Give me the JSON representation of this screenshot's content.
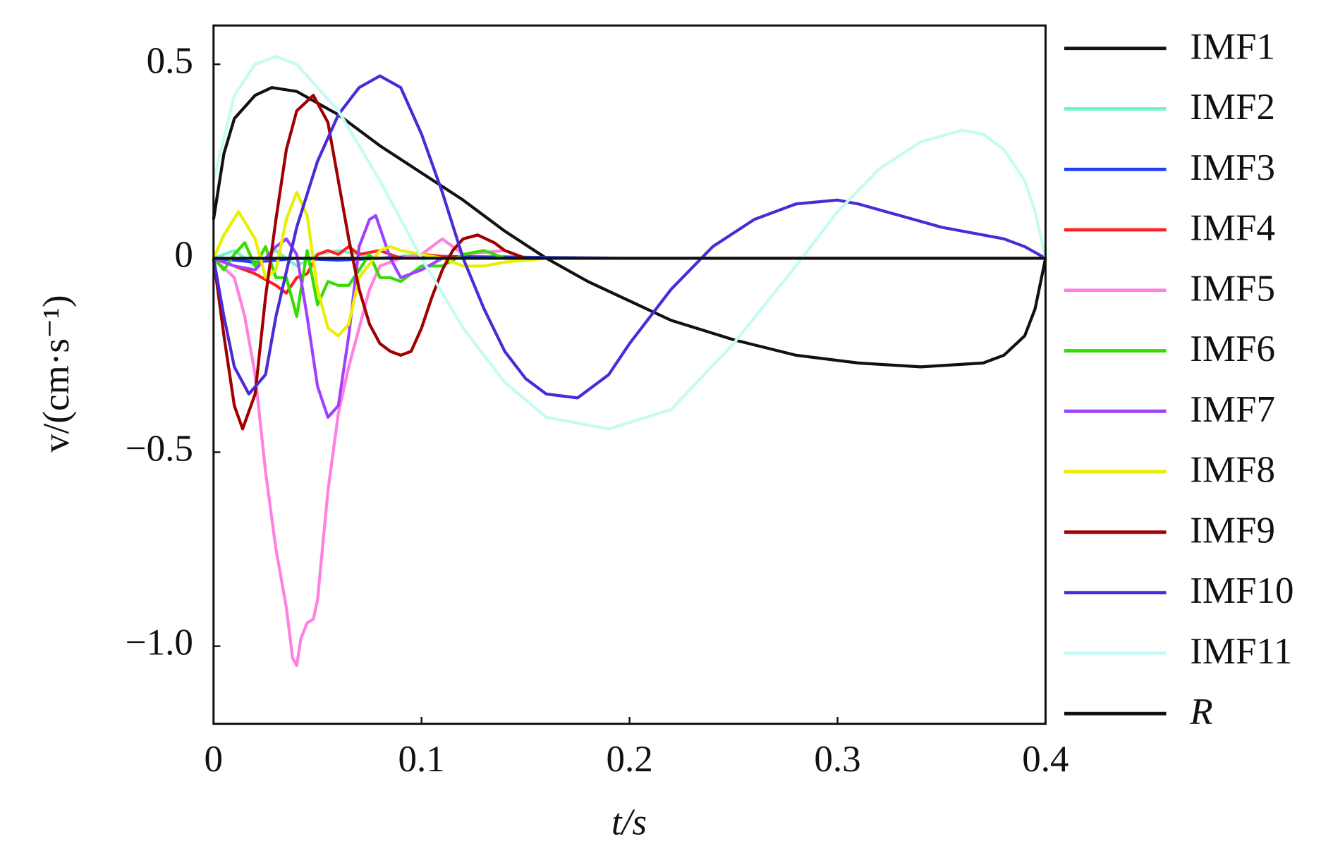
{
  "chart_data": {
    "type": "line",
    "x_label": "t/s",
    "y_label": "v/(cm·s⁻¹)",
    "xlim": [
      0,
      0.4
    ],
    "ylim": [
      -1.2,
      0.6
    ],
    "xticks": [
      0,
      0.1,
      0.2,
      0.3,
      0.4
    ],
    "yticks": [
      {
        "value": -1.0,
        "label": "−1.0"
      },
      {
        "value": -0.5,
        "label": "−0.5"
      },
      0,
      0.5
    ],
    "legend": "outside-right",
    "series": [
      {
        "name": "IMF1",
        "color": "#111111",
        "x": [
          0,
          0.005,
          0.01,
          0.02,
          0.028,
          0.04,
          0.06,
          0.08,
          0.1,
          0.12,
          0.14,
          0.16,
          0.18,
          0.2,
          0.22,
          0.25,
          0.28,
          0.31,
          0.34,
          0.37,
          0.38,
          0.39,
          0.395,
          0.4
        ],
        "values": [
          0.1,
          0.27,
          0.36,
          0.42,
          0.44,
          0.43,
          0.37,
          0.29,
          0.22,
          0.15,
          0.07,
          0,
          -0.06,
          -0.11,
          -0.16,
          -0.21,
          -0.25,
          -0.27,
          -0.28,
          -0.27,
          -0.25,
          -0.2,
          -0.13,
          0
        ]
      },
      {
        "name": "IMF2",
        "color": "#6ff5d0",
        "x": [
          0,
          0.01,
          0.02,
          0.03,
          0.04,
          0.05,
          0.06,
          0.08,
          0.1,
          0.12,
          0.14,
          0.16,
          0.2,
          0.4
        ],
        "values": [
          0,
          0.02,
          -0.02,
          0.02,
          -0.02,
          0.01,
          0.02,
          0,
          0.01,
          0,
          0.005,
          0,
          0,
          0
        ]
      },
      {
        "name": "IMF3",
        "color": "#1f3fff",
        "x": [
          0,
          0.02,
          0.04,
          0.06,
          0.1,
          0.2,
          0.4
        ],
        "values": [
          0,
          -0.01,
          0,
          -0.005,
          0.005,
          0,
          0
        ]
      },
      {
        "name": "IMF4",
        "color": "#ff2020",
        "x": [
          0,
          0.01,
          0.02,
          0.03,
          0.035,
          0.04,
          0.045,
          0.05,
          0.055,
          0.06,
          0.065,
          0.07,
          0.08,
          0.09,
          0.1,
          0.12,
          0.2,
          0.4
        ],
        "values": [
          0,
          -0.02,
          -0.04,
          -0.07,
          -0.09,
          -0.05,
          -0.04,
          0.01,
          0.02,
          0.01,
          0.03,
          0.01,
          0.02,
          0,
          0.01,
          0,
          0,
          0
        ]
      },
      {
        "name": "IMF5",
        "color": "#ff80e0",
        "x": [
          0,
          0.01,
          0.015,
          0.02,
          0.025,
          0.03,
          0.035,
          0.038,
          0.04,
          0.042,
          0.045,
          0.048,
          0.05,
          0.055,
          0.06,
          0.065,
          0.07,
          0.075,
          0.08,
          0.09,
          0.1,
          0.11,
          0.12,
          0.14,
          0.15,
          0.2,
          0.4
        ],
        "values": [
          0,
          -0.05,
          -0.15,
          -0.3,
          -0.55,
          -0.75,
          -0.9,
          -1.03,
          -1.05,
          -0.98,
          -0.94,
          -0.93,
          -0.88,
          -0.6,
          -0.4,
          -0.28,
          -0.18,
          -0.08,
          -0.02,
          0,
          0.01,
          0.05,
          0.01,
          0.02,
          0,
          0,
          0
        ]
      },
      {
        "name": "IMF6",
        "color": "#33dd00",
        "x": [
          0,
          0.005,
          0.01,
          0.015,
          0.02,
          0.025,
          0.03,
          0.035,
          0.04,
          0.045,
          0.05,
          0.055,
          0.06,
          0.065,
          0.07,
          0.075,
          0.08,
          0.085,
          0.09,
          0.1,
          0.11,
          0.12,
          0.13,
          0.14,
          0.2,
          0.4
        ],
        "values": [
          0,
          -0.03,
          0.01,
          0.04,
          -0.02,
          0.03,
          -0.05,
          -0.05,
          -0.15,
          0.02,
          -0.12,
          -0.06,
          -0.07,
          -0.07,
          -0.03,
          0.01,
          -0.05,
          -0.05,
          -0.06,
          -0.02,
          -0.02,
          0.01,
          0.02,
          0,
          0,
          0
        ]
      },
      {
        "name": "IMF7",
        "color": "#a040ff",
        "x": [
          0,
          0.01,
          0.02,
          0.03,
          0.035,
          0.04,
          0.045,
          0.05,
          0.055,
          0.06,
          0.065,
          0.07,
          0.075,
          0.078,
          0.085,
          0.09,
          0.1,
          0.11,
          0.2,
          0.4
        ],
        "values": [
          0,
          -0.02,
          -0.03,
          0.03,
          0.05,
          0.01,
          -0.15,
          -0.33,
          -0.41,
          -0.38,
          -0.2,
          0.03,
          0.1,
          0.11,
          0,
          -0.05,
          -0.03,
          0,
          0,
          0
        ]
      },
      {
        "name": "IMF8",
        "color": "#e8f000",
        "x": [
          0,
          0.005,
          0.012,
          0.02,
          0.025,
          0.03,
          0.035,
          0.04,
          0.045,
          0.05,
          0.055,
          0.06,
          0.065,
          0.07,
          0.08,
          0.085,
          0.09,
          0.1,
          0.11,
          0.12,
          0.13,
          0.14,
          0.16,
          0.2,
          0.4
        ],
        "values": [
          0,
          0.06,
          0.12,
          0.05,
          -0.05,
          -0.03,
          0.1,
          0.17,
          0.11,
          -0.08,
          -0.18,
          -0.2,
          -0.17,
          -0.05,
          0.02,
          0.03,
          0.02,
          0.01,
          0,
          -0.02,
          -0.02,
          -0.01,
          0,
          0,
          0
        ]
      },
      {
        "name": "IMF9",
        "color": "#a00000",
        "x": [
          0,
          0.005,
          0.01,
          0.014,
          0.02,
          0.025,
          0.03,
          0.035,
          0.04,
          0.048,
          0.055,
          0.06,
          0.065,
          0.07,
          0.075,
          0.08,
          0.085,
          0.09,
          0.095,
          0.1,
          0.105,
          0.11,
          0.115,
          0.12,
          0.127,
          0.135,
          0.14,
          0.15,
          0.16,
          0.2,
          0.4
        ],
        "values": [
          0,
          -0.2,
          -0.38,
          -0.44,
          -0.35,
          -0.1,
          0.1,
          0.28,
          0.38,
          0.42,
          0.35,
          0.2,
          0.05,
          -0.08,
          -0.17,
          -0.22,
          -0.24,
          -0.25,
          -0.24,
          -0.18,
          -0.1,
          -0.03,
          0.02,
          0.05,
          0.06,
          0.04,
          0.02,
          0,
          0,
          0,
          0
        ]
      },
      {
        "name": "IMF10",
        "color": "#4a2bd8",
        "x": [
          0,
          0.005,
          0.01,
          0.017,
          0.025,
          0.03,
          0.04,
          0.05,
          0.06,
          0.07,
          0.08,
          0.09,
          0.1,
          0.11,
          0.12,
          0.13,
          0.14,
          0.15,
          0.16,
          0.175,
          0.19,
          0.2,
          0.22,
          0.24,
          0.26,
          0.28,
          0.3,
          0.31,
          0.33,
          0.35,
          0.37,
          0.38,
          0.39,
          0.4
        ],
        "values": [
          0,
          -0.15,
          -0.28,
          -0.35,
          -0.3,
          -0.15,
          0.08,
          0.25,
          0.37,
          0.44,
          0.47,
          0.44,
          0.32,
          0.17,
          0,
          -0.13,
          -0.24,
          -0.31,
          -0.35,
          -0.36,
          -0.3,
          -0.22,
          -0.08,
          0.03,
          0.1,
          0.14,
          0.15,
          0.14,
          0.11,
          0.08,
          0.06,
          0.05,
          0.03,
          0
        ]
      },
      {
        "name": "IMF11",
        "color": "#c4fbf2",
        "x": [
          0,
          0.01,
          0.02,
          0.03,
          0.04,
          0.06,
          0.08,
          0.1,
          0.12,
          0.14,
          0.16,
          0.19,
          0.22,
          0.25,
          0.28,
          0.3,
          0.32,
          0.34,
          0.36,
          0.37,
          0.38,
          0.39,
          0.395,
          0.4
        ],
        "values": [
          0.2,
          0.42,
          0.5,
          0.52,
          0.5,
          0.38,
          0.2,
          0,
          -0.18,
          -0.32,
          -0.41,
          -0.44,
          -0.39,
          -0.22,
          -0.02,
          0.12,
          0.23,
          0.3,
          0.33,
          0.32,
          0.28,
          0.2,
          0.12,
          0
        ]
      },
      {
        "name": "R",
        "color": "#111111",
        "x": [
          0,
          0.1,
          0.2,
          0.3,
          0.4
        ],
        "values": [
          0,
          0,
          0,
          0,
          0
        ]
      }
    ]
  }
}
